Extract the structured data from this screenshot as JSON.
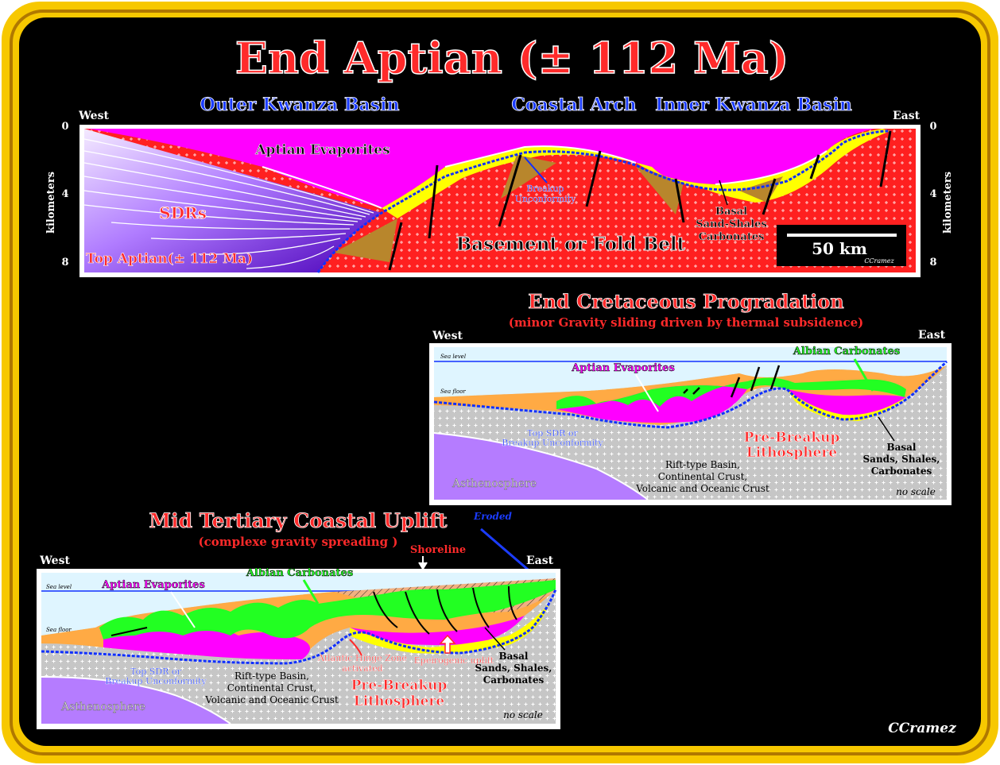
{
  "title": "End Aptian (± 112 Ma)",
  "credit": "CCramez",
  "colors": {
    "frame_outer": "#f7c800",
    "background": "#000000",
    "title_fill": "#ff2a2a",
    "basin_label": "#1b3cff",
    "evaporites": "#ff00ff",
    "basement": "#ff2020",
    "sand_shale": "#ffff00",
    "carbonates_brown": "#b8862c",
    "albian_green": "#22ff22",
    "progradation_orange": "#ffaa44",
    "asthenosphere": "#b57cff",
    "lithosphere_grey": "#c8c8c8",
    "sea_blue": "#dff5ff"
  },
  "panel1": {
    "basin_labels": [
      "Outer Kwanza Basin",
      "Coastal Arch",
      "Inner Kwanza Basin"
    ],
    "west": "West",
    "east": "East",
    "axis_label": "kilometers",
    "ticks": [
      "0",
      "4",
      "8"
    ],
    "labels": {
      "evaporites": "Aptian Evaporites",
      "sdrs": "SDRs",
      "top_aptian": "Top Aptian(± 112 Ma)",
      "basement": "Basement or Fold Belt",
      "breakup": "Breakup",
      "unconformity": "Unconformity",
      "basal": "Basal",
      "sand_shales": "Sand-Shales",
      "carbonates": "Carbonates",
      "scale": "50 km",
      "scale_credit": "CCramez"
    }
  },
  "panel2": {
    "title": "End Cretaceous Progradation",
    "subtitle": "(minor Gravity sliding driven by thermal subsidence)",
    "west": "West",
    "east": "East",
    "labels": {
      "sea_level": "Sea level",
      "sea_floor": "Sea floor",
      "albian": "Albian Carbonates",
      "evaporites": "Aptian Evaporites",
      "top_sdr_1": "Top SDR or",
      "top_sdr_2": "Breakup Unconformity",
      "pre_breakup_1": "Pre-Breakup",
      "pre_breakup_2": "Lithosphere",
      "basal_1": "Basal",
      "basal_2": "Sands, Shales,",
      "basal_3": "Carbonates",
      "rift_1": "Rift-type Basin,",
      "rift_2": "Continental Crust,",
      "rift_3": "Volcanic and  Oceanic Crust",
      "asthenosphere": "Asthenosphere",
      "no_scale": "no scale"
    }
  },
  "panel3": {
    "title": "Mid Tertiary Coastal Uplift",
    "subtitle": "(complexe gravity spreading )",
    "west": "West",
    "east": "East",
    "labels": {
      "eroded": "Eroded",
      "shoreline": "Shoreline",
      "sea_level": "Sea level",
      "sea_floor": "Sea floor",
      "evaporites": "Aptian Evaporites",
      "albian": "Albian Carbonates",
      "top_sdr_1": "Top SDR or",
      "top_sdr_2": "Breakup Unconformity",
      "hinge_1": "Atlantic  Hinge Zone",
      "hinge_2": "activated",
      "epeiro": "Epeirogenic uplift",
      "basal_1": "Basal",
      "basal_2": "Sands, Shales,",
      "basal_3": "Carbonates",
      "rift_1": "Rift-type Basin,",
      "rift_2": "Continental Crust,",
      "rift_3": "Volcanic and  Oceanic Crust",
      "pre_breakup_1": "Pre-Breakup",
      "pre_breakup_2": "Lithosphere",
      "asthenosphere": "Asthenosphere",
      "no_scale": "no scale"
    }
  }
}
